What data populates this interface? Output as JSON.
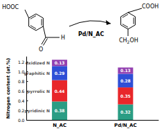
{
  "chart_data": {
    "type": "bar",
    "stacked": true,
    "data_labels": true,
    "grid": false,
    "ylabel": "Nitrogen content (at.%)",
    "categories": [
      "N_AC",
      "Pd/N_AC"
    ],
    "series": [
      {
        "name": "pyridinic N",
        "color": "#2a9d84",
        "values": [
          0.38,
          0.32
        ]
      },
      {
        "name": "pyrrolic N",
        "color": "#e8262a",
        "values": [
          0.44,
          0.35
        ]
      },
      {
        "name": "graphitic N",
        "color": "#2f4fd6",
        "values": [
          0.29,
          0.28
        ]
      },
      {
        "name": "oxidized N",
        "color": "#9340b0",
        "values": [
          0.13,
          0.13
        ]
      }
    ],
    "ylim": [
      0,
      1.3
    ],
    "yticks": [
      {
        "value": 0,
        "label": "0.0"
      },
      0.2,
      0.4,
      0.6,
      0.8,
      {
        "value": 1,
        "label": "1.0"
      },
      1.2
    ]
  },
  "scheme": {
    "reactant": {
      "acid": "HOOC",
      "carbonyl_o": "O",
      "carbonyl_h": "H"
    },
    "catalyst": "Pd/N_AC",
    "product": {
      "acid": "COOH",
      "alcohol": "CH",
      "alcohol_sub": "2",
      "alcohol_end": "OH"
    }
  }
}
